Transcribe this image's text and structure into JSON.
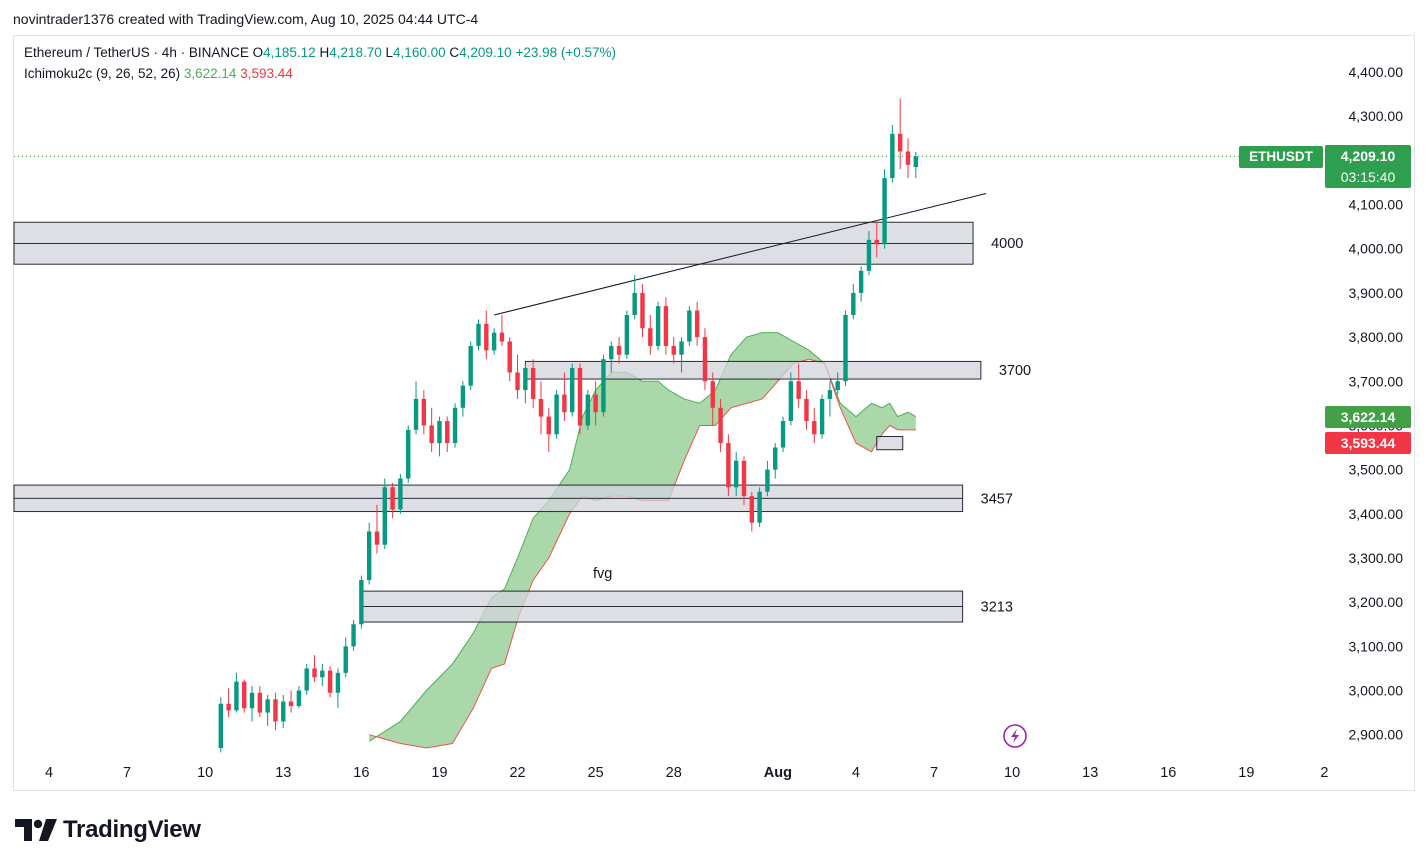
{
  "caption": "novintrader1376 created with TradingView.com, Aug 10, 2025 04:44 UTC-4",
  "legend": {
    "symbol": "Ethereum / TetherUS · 4h · BINANCE",
    "o_label": "O",
    "o": "4,185.12",
    "h_label": "H",
    "h": "4,218.70",
    "l_label": "L",
    "l": "4,160.00",
    "c_label": "C",
    "c": "4,209.10",
    "change": "+23.98 (+0.57%)",
    "indicator": "Ichimoku2c (9, 26, 52, 26)",
    "ind_a": "3,622.14",
    "ind_b": "3,593.44"
  },
  "tags": {
    "symbol": "ETHUSDT",
    "last": "4,209.10",
    "countdown": "03:15:40",
    "senkou_a": "3,622.14",
    "senkou_b": "3,593.44"
  },
  "footer": {
    "brand": "TradingView"
  },
  "colors": {
    "up": "#089981",
    "down": "#f23645",
    "cloud": "#a5d6a7",
    "zone": "#d1d4dc",
    "last": "#2e9e4f"
  },
  "chart_data": {
    "type": "candlestick",
    "timeframe": "4h",
    "ylim": [
      2860,
      4460
    ],
    "y_ticks": [
      "4,400.00",
      "4,300.00",
      "4,200.00",
      "4,100.00",
      "4,000.00",
      "3,900.00",
      "3,800.00",
      "3,700.00",
      "3,600.00",
      "3,500.00",
      "3,400.00",
      "3,300.00",
      "3,200.00",
      "3,100.00",
      "3,000.00",
      "2,900.00"
    ],
    "y_tick_values": [
      4400,
      4300,
      4200,
      4100,
      4000,
      3900,
      3800,
      3700,
      3600,
      3500,
      3400,
      3300,
      3200,
      3100,
      3000,
      2900
    ],
    "x_ticks": [
      "4",
      "7",
      "10",
      "13",
      "16",
      "19",
      "22",
      "25",
      "28",
      "Aug",
      "4",
      "7",
      "10",
      "13",
      "16",
      "19",
      "2"
    ],
    "x_tick_days": [
      4,
      7,
      10,
      13,
      16,
      19,
      22,
      25,
      28,
      32,
      35,
      38,
      41,
      44,
      47,
      50,
      53
    ],
    "last_price": 4209.1,
    "zones": [
      {
        "label": "4000",
        "low": 3965,
        "high": 4060,
        "mid": 4012,
        "from_day": 0,
        "to_day": 39.5
      },
      {
        "label": "3700",
        "low": 3705,
        "high": 3745,
        "from_day": 22.3,
        "to_day": 39.8
      },
      {
        "label": "3457",
        "low": 3405,
        "high": 3465,
        "mid": 3435,
        "from_day": 0,
        "to_day": 39.1
      },
      {
        "label": "3213",
        "low": 3155,
        "high": 3225,
        "mid": 3190,
        "from_day": 16,
        "to_day": 39.1
      },
      {
        "label": "",
        "low": 3545,
        "high": 3575,
        "from_day": 35.8,
        "to_day": 36.8
      }
    ],
    "annotations": [
      {
        "text": "fvg",
        "day": 24.9,
        "price": 3255
      }
    ],
    "trendline": [
      {
        "day": 21.1,
        "price": 3850
      },
      {
        "day": 40.0,
        "price": 4125
      }
    ],
    "candles_ohlc": [
      [
        2870,
        2985,
        2860,
        2970
      ],
      [
        2970,
        3005,
        2940,
        2955
      ],
      [
        2955,
        3040,
        2950,
        3020
      ],
      [
        3020,
        3025,
        2950,
        2960
      ],
      [
        2960,
        3010,
        2930,
        2995
      ],
      [
        2995,
        3010,
        2940,
        2950
      ],
      [
        2950,
        2990,
        2920,
        2980
      ],
      [
        2980,
        2995,
        2910,
        2930
      ],
      [
        2930,
        2990,
        2915,
        2975
      ],
      [
        2975,
        3000,
        2950,
        2965
      ],
      [
        2965,
        3010,
        2960,
        3000
      ],
      [
        3000,
        3060,
        2990,
        3050
      ],
      [
        3050,
        3080,
        3020,
        3030
      ],
      [
        3030,
        3060,
        3010,
        3045
      ],
      [
        3045,
        3055,
        2985,
        2995
      ],
      [
        2995,
        3050,
        2960,
        3040
      ],
      [
        3040,
        3120,
        3030,
        3100
      ],
      [
        3100,
        3160,
        3090,
        3150
      ],
      [
        3150,
        3260,
        3140,
        3250
      ],
      [
        3250,
        3380,
        3240,
        3360
      ],
      [
        3360,
        3420,
        3310,
        3330
      ],
      [
        3330,
        3480,
        3320,
        3460
      ],
      [
        3460,
        3470,
        3390,
        3410
      ],
      [
        3410,
        3490,
        3400,
        3480
      ],
      [
        3480,
        3600,
        3470,
        3590
      ],
      [
        3590,
        3700,
        3580,
        3660
      ],
      [
        3660,
        3680,
        3580,
        3600
      ],
      [
        3600,
        3640,
        3540,
        3560
      ],
      [
        3560,
        3620,
        3530,
        3610
      ],
      [
        3610,
        3620,
        3540,
        3560
      ],
      [
        3560,
        3650,
        3550,
        3640
      ],
      [
        3640,
        3700,
        3620,
        3690
      ],
      [
        3690,
        3790,
        3680,
        3780
      ],
      [
        3780,
        3840,
        3770,
        3830
      ],
      [
        3830,
        3860,
        3750,
        3770
      ],
      [
        3770,
        3820,
        3760,
        3810
      ],
      [
        3810,
        3850,
        3780,
        3790
      ],
      [
        3790,
        3800,
        3700,
        3720
      ],
      [
        3720,
        3760,
        3660,
        3680
      ],
      [
        3680,
        3740,
        3650,
        3730
      ],
      [
        3730,
        3750,
        3640,
        3660
      ],
      [
        3660,
        3700,
        3580,
        3620
      ],
      [
        3620,
        3640,
        3540,
        3580
      ],
      [
        3580,
        3680,
        3570,
        3670
      ],
      [
        3670,
        3720,
        3610,
        3630
      ],
      [
        3630,
        3740,
        3620,
        3730
      ],
      [
        3730,
        3740,
        3580,
        3600
      ],
      [
        3600,
        3680,
        3590,
        3670
      ],
      [
        3670,
        3700,
        3600,
        3630
      ],
      [
        3630,
        3760,
        3620,
        3750
      ],
      [
        3750,
        3790,
        3720,
        3780
      ],
      [
        3780,
        3800,
        3740,
        3760
      ],
      [
        3760,
        3860,
        3750,
        3850
      ],
      [
        3850,
        3940,
        3840,
        3900
      ],
      [
        3900,
        3920,
        3800,
        3820
      ],
      [
        3820,
        3850,
        3760,
        3780
      ],
      [
        3780,
        3880,
        3770,
        3870
      ],
      [
        3870,
        3890,
        3760,
        3780
      ],
      [
        3780,
        3800,
        3740,
        3760
      ],
      [
        3760,
        3800,
        3720,
        3790
      ],
      [
        3790,
        3870,
        3780,
        3860
      ],
      [
        3860,
        3880,
        3780,
        3800
      ],
      [
        3800,
        3820,
        3680,
        3700
      ],
      [
        3700,
        3720,
        3600,
        3640
      ],
      [
        3640,
        3660,
        3540,
        3560
      ],
      [
        3560,
        3580,
        3440,
        3460
      ],
      [
        3460,
        3540,
        3440,
        3520
      ],
      [
        3520,
        3530,
        3420,
        3440
      ],
      [
        3440,
        3450,
        3360,
        3380
      ],
      [
        3380,
        3460,
        3370,
        3450
      ],
      [
        3450,
        3520,
        3440,
        3500
      ],
      [
        3500,
        3560,
        3480,
        3550
      ],
      [
        3550,
        3620,
        3540,
        3610
      ],
      [
        3610,
        3720,
        3600,
        3700
      ],
      [
        3700,
        3740,
        3640,
        3660
      ],
      [
        3660,
        3680,
        3590,
        3610
      ],
      [
        3610,
        3640,
        3560,
        3580
      ],
      [
        3580,
        3670,
        3570,
        3660
      ],
      [
        3660,
        3700,
        3620,
        3680
      ],
      [
        3680,
        3720,
        3670,
        3700
      ],
      [
        3700,
        3860,
        3690,
        3850
      ],
      [
        3850,
        3920,
        3840,
        3900
      ],
      [
        3900,
        3960,
        3880,
        3950
      ],
      [
        3950,
        4040,
        3940,
        4020
      ],
      [
        4020,
        4060,
        3980,
        4010
      ],
      [
        4010,
        4180,
        4000,
        4160
      ],
      [
        4160,
        4280,
        4150,
        4260
      ],
      [
        4260,
        4340,
        4180,
        4220
      ],
      [
        4220,
        4250,
        4160,
        4190
      ],
      [
        4185,
        4219,
        4160,
        4209
      ]
    ],
    "candles_x_days": [
      10.6,
      10.9,
      11.2,
      11.5,
      11.8,
      12.1,
      12.4,
      12.7,
      13.0,
      13.3,
      13.6,
      13.9,
      14.2,
      14.5,
      14.8,
      15.1,
      15.4,
      15.7,
      16.0,
      16.3,
      16.6,
      16.9,
      17.2,
      17.5,
      17.8,
      18.1,
      18.4,
      18.7,
      19.0,
      19.3,
      19.6,
      19.9,
      20.2,
      20.5,
      20.8,
      21.1,
      21.4,
      21.7,
      22.0,
      22.3,
      22.6,
      22.9,
      23.2,
      23.5,
      23.8,
      24.1,
      24.4,
      24.7,
      25.0,
      25.3,
      25.6,
      25.9,
      26.2,
      26.5,
      26.8,
      27.1,
      27.4,
      27.7,
      28.0,
      28.3,
      28.6,
      28.9,
      29.2,
      29.5,
      29.8,
      30.1,
      30.4,
      30.7,
      31.0,
      31.3,
      31.6,
      31.9,
      32.2,
      32.5,
      32.8,
      33.1,
      33.4,
      33.7,
      34.0,
      34.3,
      34.6,
      34.9,
      35.2,
      35.5,
      35.8,
      36.1,
      36.4,
      36.7,
      37.0,
      37.3
    ],
    "cloud": {
      "days": [
        16.3,
        17.5,
        18.5,
        19.5,
        20.3,
        21.0,
        21.5,
        22.0,
        22.6,
        23.2,
        24.0,
        24.5,
        25.0,
        25.6,
        26.2,
        26.8,
        27.4,
        27.8,
        28.4,
        29.0,
        29.6,
        30.2,
        30.8,
        31.4,
        32.0,
        32.6,
        33.2,
        33.8,
        34.4,
        35.0,
        35.6,
        36.0,
        36.3,
        36.6,
        37.0,
        37.3
      ],
      "span_a": [
        2885,
        2930,
        3000,
        3060,
        3130,
        3210,
        3230,
        3300,
        3390,
        3430,
        3500,
        3620,
        3680,
        3720,
        3720,
        3700,
        3700,
        3680,
        3660,
        3650,
        3680,
        3760,
        3800,
        3810,
        3810,
        3790,
        3770,
        3740,
        3650,
        3620,
        3650,
        3640,
        3650,
        3620,
        3630,
        3620
      ],
      "span_b": [
        2900,
        2880,
        2870,
        2880,
        2960,
        3050,
        3060,
        3160,
        3250,
        3300,
        3400,
        3440,
        3430,
        3440,
        3440,
        3430,
        3430,
        3430,
        3520,
        3600,
        3600,
        3640,
        3650,
        3660,
        3700,
        3740,
        3750,
        3740,
        3640,
        3560,
        3540,
        3580,
        3600,
        3590,
        3590,
        3590
      ]
    }
  }
}
